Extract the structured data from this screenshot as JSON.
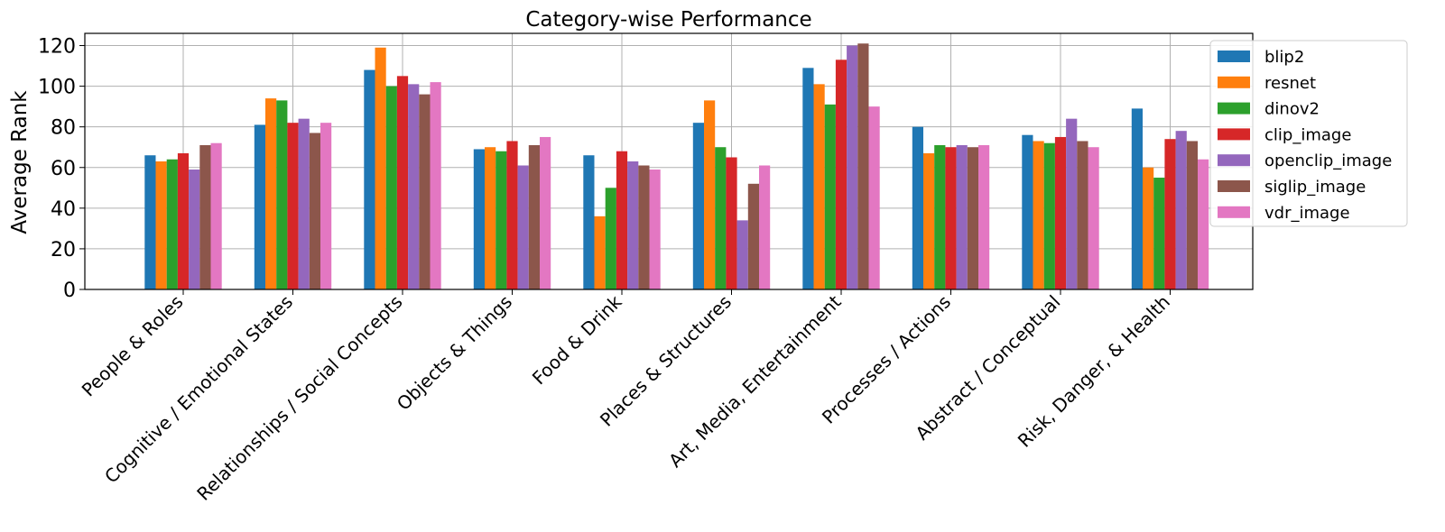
{
  "chart_data": {
    "type": "bar",
    "title": "Category-wise Performance",
    "xlabel": "",
    "ylabel": "Average Rank",
    "ylim": [
      0,
      126
    ],
    "yticks": [
      0,
      20,
      40,
      60,
      80,
      100,
      120
    ],
    "grid": true,
    "legend_position": "top-right (outside)",
    "categories": [
      "People & Roles",
      "Cognitive / Emotional States",
      "Relationships / Social Concepts",
      "Objects & Things",
      "Food & Drink",
      "Places & Structures",
      "Art, Media, Entertainment",
      "Processes / Actions",
      "Abstract / Conceptual",
      "Risk, Danger, & Health"
    ],
    "series": [
      {
        "name": "blip2",
        "color": "#1f77b4",
        "values": [
          66,
          81,
          108,
          69,
          66,
          82,
          109,
          80,
          76,
          89
        ]
      },
      {
        "name": "resnet",
        "color": "#ff7f0e",
        "values": [
          63,
          94,
          119,
          70,
          36,
          93,
          101,
          67,
          73,
          60
        ]
      },
      {
        "name": "dinov2",
        "color": "#2ca02c",
        "values": [
          64,
          93,
          100,
          68,
          50,
          70,
          91,
          71,
          72,
          55
        ]
      },
      {
        "name": "clip_image",
        "color": "#d62728",
        "values": [
          67,
          82,
          105,
          73,
          68,
          65,
          113,
          70,
          75,
          74
        ]
      },
      {
        "name": "openclip_image",
        "color": "#9467bd",
        "values": [
          59,
          84,
          101,
          61,
          63,
          34,
          120,
          71,
          84,
          78
        ]
      },
      {
        "name": "siglip_image",
        "color": "#8c564b",
        "values": [
          71,
          77,
          96,
          71,
          61,
          52,
          121,
          70,
          73,
          73
        ]
      },
      {
        "name": "vdr_image",
        "color": "#e377c2",
        "values": [
          72,
          82,
          102,
          75,
          59,
          61,
          90,
          71,
          70,
          64
        ]
      }
    ]
  }
}
